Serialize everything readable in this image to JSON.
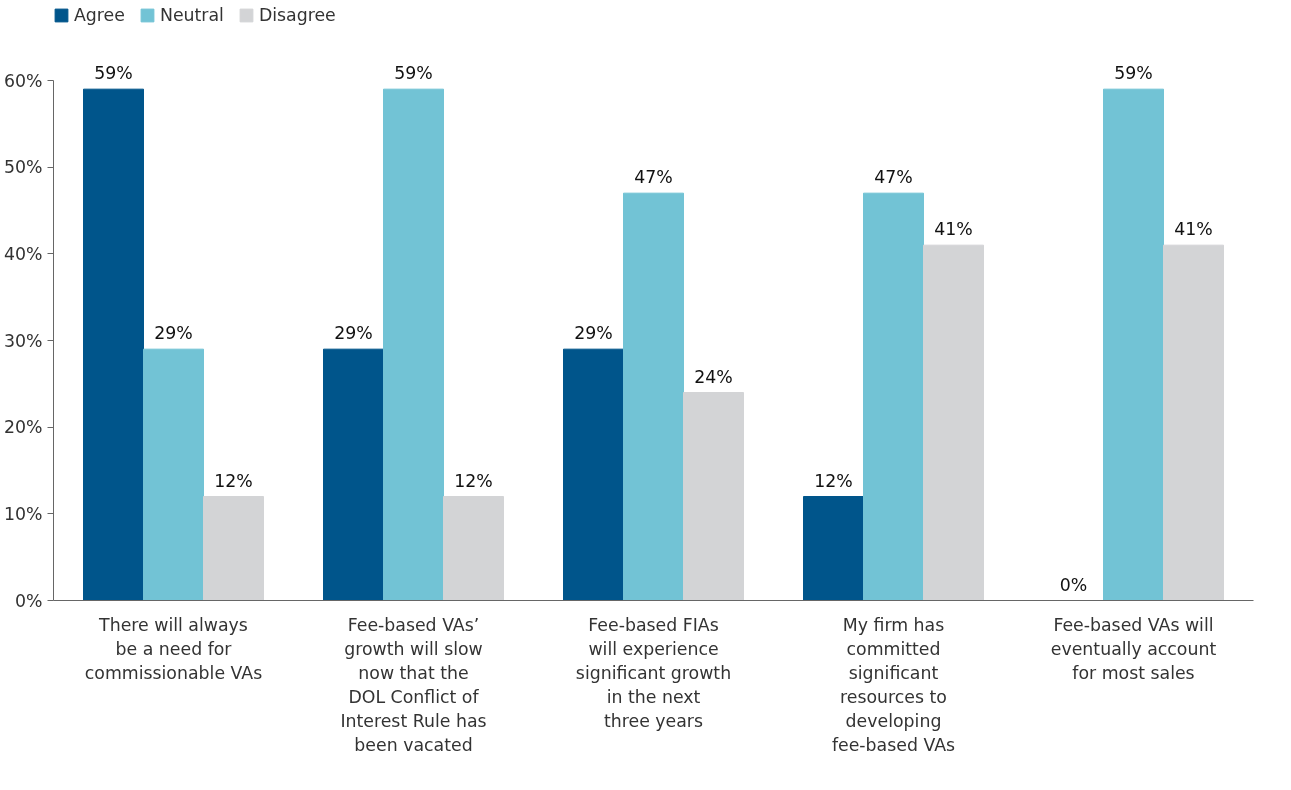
{
  "chart_data": {
    "type": "bar",
    "categories": [
      "There will always\nbe a need for\ncommissionable VAs",
      "Fee-based VAs’\ngrowth will slow\nnow that the\nDOL Conflict of\nInterest Rule has\nbeen vacated",
      "Fee-based FIAs\nwill experience\nsignificant growth\nin the next\nthree years",
      "My firm has\ncommitted\nsignificant\nresources to\ndeveloping\nfee-based VAs",
      "Fee-based VAs will\neventually account\nfor most sales"
    ],
    "series": [
      {
        "name": "Agree",
        "color": "#00558b",
        "values": [
          59,
          29,
          29,
          12,
          0
        ],
        "value_labels": [
          "59%",
          "29%",
          "29%",
          "12%",
          "0%"
        ]
      },
      {
        "name": "Neutral",
        "color": "#72c3d5",
        "values": [
          29,
          59,
          47,
          47,
          59
        ],
        "value_labels": [
          "29%",
          "59%",
          "47%",
          "47%",
          "59%"
        ]
      },
      {
        "name": "Disagree",
        "color": "#d3d4d6",
        "values": [
          12,
          12,
          24,
          41,
          41
        ],
        "value_labels": [
          "12%",
          "12%",
          "24%",
          "41%",
          "41%"
        ]
      }
    ],
    "ylim": [
      0,
      60
    ],
    "yticks": [
      {
        "value": 0,
        "label": "0%"
      },
      {
        "value": 10,
        "label": "10%"
      },
      {
        "value": 20,
        "label": "20%"
      },
      {
        "value": 30,
        "label": "30%"
      },
      {
        "value": 40,
        "label": "40%"
      },
      {
        "value": 50,
        "label": "50%"
      },
      {
        "value": 60,
        "label": "60%"
      }
    ],
    "grid": false,
    "legend": "top left"
  }
}
